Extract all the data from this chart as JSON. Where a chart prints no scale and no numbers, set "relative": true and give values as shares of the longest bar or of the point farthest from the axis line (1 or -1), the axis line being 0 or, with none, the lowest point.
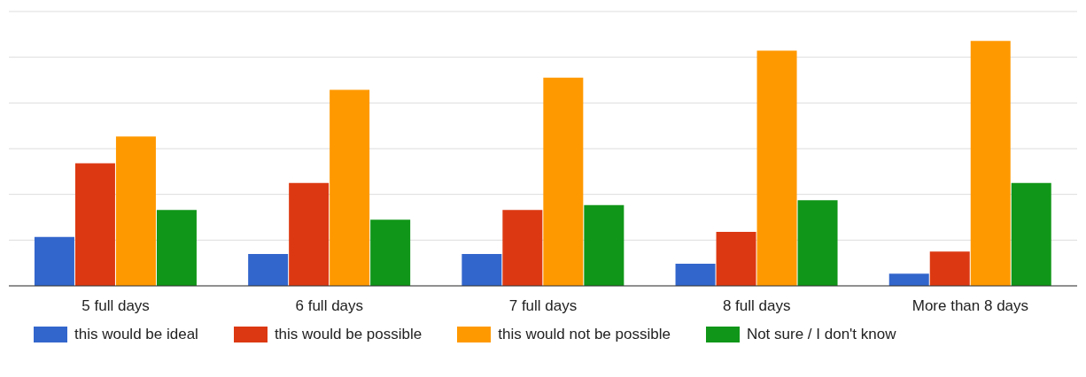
{
  "chart_data": {
    "type": "bar",
    "relative": true,
    "categories": [
      "5 full days",
      "6 full days",
      "7 full days",
      "8 full days",
      "More than 8 days"
    ],
    "series": [
      {
        "name": "this would be ideal",
        "color": "#3366cc",
        "values": [
          0.2,
          0.13,
          0.13,
          0.09,
          0.05
        ]
      },
      {
        "name": "this would be possible",
        "color": "#dc3912",
        "values": [
          0.5,
          0.42,
          0.31,
          0.22,
          0.14
        ]
      },
      {
        "name": "this would not be possible",
        "color": "#ff9900",
        "values": [
          0.61,
          0.8,
          0.85,
          0.96,
          1
        ]
      },
      {
        "name": "Not sure / I don't know",
        "color": "#109618",
        "values": [
          0.31,
          0.27,
          0.33,
          0.35,
          0.42
        ]
      }
    ],
    "grid": "y",
    "legend": "bottom"
  }
}
